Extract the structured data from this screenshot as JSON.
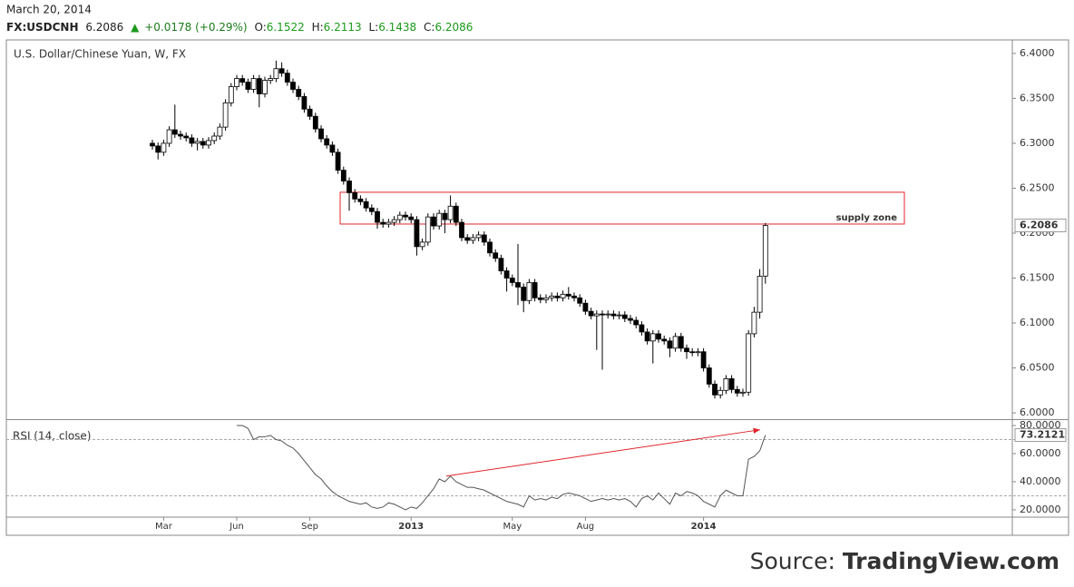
{
  "chart_data": {
    "type": "candlestick",
    "header": {
      "date": "March 20, 2014",
      "symbol": "FX:USDCNH",
      "last": "6.2086",
      "change": "+0.0178 (+0.29%)",
      "ohlc": [
        {
          "label": "O:",
          "value": "6.1522"
        },
        {
          "label": "H:",
          "value": "6.2113"
        },
        {
          "label": "L:",
          "value": "6.1438"
        },
        {
          "label": "C:",
          "value": "6.2086"
        }
      ]
    },
    "title": "U.S. Dollar/Chinese Yuan, W, FX",
    "source": {
      "prefix": "Source:",
      "name": "TradingView.com"
    },
    "up_color": "#ffffff",
    "down_color": "#000000",
    "categories": [
      null,
      null,
      "Mar",
      null,
      null,
      null,
      null,
      null,
      null,
      null,
      null,
      null,
      null,
      null,
      null,
      "Jun",
      null,
      null,
      null,
      null,
      null,
      null,
      null,
      null,
      null,
      null,
      null,
      null,
      "Sep",
      null,
      null,
      null,
      null,
      null,
      null,
      null,
      null,
      null,
      null,
      null,
      null,
      null,
      null,
      null,
      null,
      null,
      "2013",
      null,
      null,
      null,
      null,
      null,
      null,
      null,
      null,
      null,
      null,
      null,
      null,
      null,
      null,
      null,
      null,
      null,
      "May",
      null,
      null,
      null,
      null,
      null,
      null,
      null,
      null,
      null,
      null,
      null,
      null,
      "Aug",
      null,
      null,
      null,
      null,
      null,
      null,
      null,
      null,
      null,
      null,
      null,
      null,
      null,
      null,
      null,
      null,
      null,
      null,
      null,
      null,
      "2014",
      null,
      null,
      null,
      null,
      null,
      null,
      null,
      null,
      null,
      null,
      null
    ],
    "open": [
      6.3,
      6.297,
      6.29,
      6.3,
      6.315,
      6.31,
      6.308,
      6.306,
      6.3,
      6.302,
      6.298,
      6.303,
      6.308,
      6.318,
      6.345,
      6.363,
      6.372,
      6.368,
      6.36,
      6.372,
      6.355,
      6.37,
      6.372,
      6.383,
      6.378,
      6.368,
      6.36,
      6.352,
      6.338,
      6.33,
      6.316,
      6.305,
      6.298,
      6.29,
      6.27,
      6.258,
      6.245,
      6.238,
      6.235,
      6.228,
      6.224,
      6.212,
      6.21,
      6.212,
      6.215,
      6.22,
      6.218,
      6.215,
      6.185,
      6.19,
      6.218,
      6.208,
      6.222,
      6.215,
      6.23,
      6.212,
      6.195,
      6.192,
      6.195,
      6.198,
      6.19,
      6.178,
      6.172,
      6.158,
      6.15,
      6.145,
      6.14,
      6.125,
      6.145,
      6.128,
      6.126,
      6.128,
      6.13,
      6.128,
      6.132,
      6.13,
      6.128,
      6.122,
      6.113,
      6.108,
      6.11,
      6.109,
      6.11,
      6.108,
      6.109,
      6.105,
      6.103,
      6.098,
      6.09,
      6.08,
      6.088,
      6.082,
      6.08,
      6.072,
      6.085,
      6.072,
      6.068,
      6.067,
      6.068,
      6.05,
      6.032,
      6.02,
      6.025,
      6.038,
      6.026,
      6.022,
      6.023,
      6.088,
      6.112,
      6.1522
    ],
    "high": [
      6.304,
      6.301,
      6.304,
      6.319,
      6.343,
      6.314,
      6.312,
      6.31,
      6.306,
      6.306,
      6.307,
      6.312,
      6.322,
      6.349,
      6.367,
      6.376,
      6.376,
      6.372,
      6.376,
      6.376,
      6.374,
      6.376,
      6.392,
      6.39,
      6.382,
      6.372,
      6.364,
      6.356,
      6.342,
      6.334,
      6.32,
      6.309,
      6.302,
      6.294,
      6.274,
      6.262,
      6.249,
      6.242,
      6.239,
      6.232,
      6.228,
      6.216,
      6.216,
      6.219,
      6.224,
      6.224,
      6.222,
      6.219,
      6.194,
      6.222,
      6.222,
      6.226,
      6.226,
      6.242,
      6.234,
      6.216,
      6.199,
      6.199,
      6.202,
      6.202,
      6.194,
      6.182,
      6.176,
      6.162,
      6.154,
      6.188,
      6.144,
      6.149,
      6.149,
      6.132,
      6.132,
      6.134,
      6.134,
      6.136,
      6.14,
      6.134,
      6.132,
      6.126,
      6.117,
      6.114,
      6.114,
      6.114,
      6.114,
      6.113,
      6.113,
      6.109,
      6.107,
      6.102,
      6.094,
      6.092,
      6.092,
      6.086,
      6.084,
      6.089,
      6.089,
      6.076,
      6.072,
      6.072,
      6.072,
      6.054,
      6.036,
      6.029,
      6.042,
      6.042,
      6.03,
      6.027,
      6.092,
      6.118,
      6.16,
      6.2113
    ],
    "low": [
      6.293,
      6.282,
      6.286,
      6.296,
      6.306,
      6.304,
      6.302,
      6.296,
      6.292,
      6.294,
      6.294,
      6.299,
      6.304,
      6.314,
      6.341,
      6.359,
      6.364,
      6.356,
      6.356,
      6.34,
      6.351,
      6.366,
      6.368,
      6.374,
      6.364,
      6.356,
      6.348,
      6.334,
      6.326,
      6.312,
      6.301,
      6.294,
      6.286,
      6.266,
      6.254,
      6.225,
      6.234,
      6.231,
      6.224,
      6.22,
      6.205,
      6.206,
      6.206,
      6.208,
      6.211,
      6.214,
      6.211,
      6.175,
      6.181,
      6.186,
      6.204,
      6.204,
      6.2,
      6.211,
      6.208,
      6.191,
      6.188,
      6.188,
      6.191,
      6.186,
      6.174,
      6.168,
      6.154,
      6.135,
      6.141,
      6.12,
      6.112,
      6.121,
      6.124,
      6.122,
      6.122,
      6.124,
      6.124,
      6.124,
      6.126,
      6.124,
      6.118,
      6.109,
      6.104,
      6.07,
      6.048,
      6.105,
      6.104,
      6.104,
      6.101,
      6.099,
      6.094,
      6.086,
      6.076,
      6.055,
      6.078,
      6.076,
      6.062,
      6.068,
      6.068,
      6.06,
      6.063,
      6.063,
      6.046,
      6.028,
      6.016,
      6.016,
      6.021,
      6.022,
      6.018,
      6.018,
      6.019,
      6.084,
      6.105,
      6.1438
    ],
    "close": [
      6.297,
      6.29,
      6.3,
      6.315,
      6.31,
      6.308,
      6.306,
      6.3,
      6.302,
      6.298,
      6.303,
      6.308,
      6.318,
      6.345,
      6.363,
      6.372,
      6.368,
      6.36,
      6.372,
      6.355,
      6.37,
      6.372,
      6.383,
      6.378,
      6.368,
      6.36,
      6.352,
      6.338,
      6.33,
      6.316,
      6.305,
      6.298,
      6.29,
      6.27,
      6.258,
      6.245,
      6.238,
      6.235,
      6.228,
      6.224,
      6.212,
      6.21,
      6.212,
      6.215,
      6.22,
      6.218,
      6.215,
      6.185,
      6.19,
      6.218,
      6.208,
      6.222,
      6.215,
      6.23,
      6.212,
      6.195,
      6.192,
      6.195,
      6.198,
      6.19,
      6.178,
      6.172,
      6.158,
      6.15,
      6.145,
      6.14,
      6.125,
      6.145,
      6.128,
      6.126,
      6.128,
      6.13,
      6.128,
      6.132,
      6.13,
      6.128,
      6.122,
      6.113,
      6.108,
      6.11,
      6.109,
      6.11,
      6.108,
      6.109,
      6.105,
      6.103,
      6.098,
      6.09,
      6.08,
      6.088,
      6.082,
      6.08,
      6.072,
      6.085,
      6.072,
      6.068,
      6.067,
      6.068,
      6.05,
      6.032,
      6.02,
      6.025,
      6.038,
      6.026,
      6.022,
      6.023,
      6.088,
      6.112,
      6.152,
      6.2086
    ],
    "ylim": [
      5.993,
      6.414
    ],
    "yticks": [
      {
        "value": 6.0,
        "label": "6.0000"
      },
      {
        "value": 6.05,
        "label": "6.0500"
      },
      {
        "value": 6.1,
        "label": "6.1000"
      },
      {
        "value": 6.15,
        "label": "6.1500"
      },
      {
        "value": 6.2,
        "label": "6.2000"
      },
      {
        "value": 6.25,
        "label": "6.2500"
      },
      {
        "value": 6.3,
        "label": "6.3000"
      },
      {
        "value": 6.35,
        "label": "6.3500"
      },
      {
        "value": 6.4,
        "label": "6.4000"
      }
    ],
    "last_price_label": "6.2086",
    "supply_zone": {
      "label": "supply zone",
      "range": [
        6.2101,
        6.2455
      ],
      "color": "#e0262b"
    },
    "rsi": {
      "title": "RSI (14, close)",
      "color": "#555555",
      "values": [
        null,
        null,
        null,
        null,
        null,
        null,
        null,
        null,
        null,
        null,
        null,
        null,
        null,
        null,
        null,
        80,
        80,
        78,
        70,
        72,
        72,
        73,
        70,
        69,
        66,
        64,
        60,
        55,
        50,
        45,
        42,
        37,
        33,
        30,
        28,
        26,
        25,
        24,
        25,
        22,
        21,
        22,
        25,
        24,
        22,
        20,
        22,
        21,
        25,
        30,
        35,
        42,
        40,
        44,
        40,
        38,
        36,
        36,
        35,
        34,
        32,
        30,
        28,
        26,
        25,
        24,
        22,
        30,
        27,
        28,
        27,
        29,
        28,
        31,
        32,
        31,
        30,
        28,
        26,
        27,
        28,
        27,
        28,
        27,
        28,
        26,
        22,
        28,
        30,
        27,
        32,
        28,
        24,
        32,
        30,
        33,
        32,
        30,
        26,
        24,
        22,
        30,
        34,
        32,
        30,
        30,
        56,
        58,
        62,
        73.2121
      ],
      "value_label": "73.2121",
      "ylim": [
        14.8,
        83.9
      ],
      "yticks": [
        {
          "value": 20,
          "label": "20.0000"
        },
        {
          "value": 40,
          "label": "40.0000"
        },
        {
          "value": 60,
          "label": "60.0000"
        },
        {
          "value": 80,
          "label": "80.0000"
        }
      ],
      "levels": [
        30,
        70
      ],
      "trendline": {
        "values": [
          44,
          77
        ],
        "color": "#e0262b"
      }
    }
  }
}
